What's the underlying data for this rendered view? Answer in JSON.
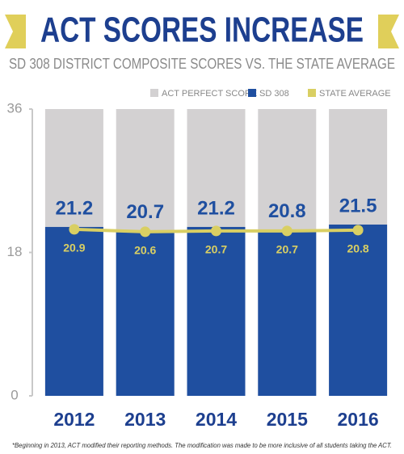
{
  "chart_data": {
    "type": "bar",
    "title": "ACT SCORES INCREASE",
    "subtitle": "SD 308 DISTRICT COMPOSITE SCORES VS. THE STATE AVERAGE",
    "categories": [
      "2012",
      "2013",
      "2014",
      "2015",
      "2016"
    ],
    "series": [
      {
        "name": "ACT PERFECT SCORE",
        "color": "#d3d1d2",
        "type": "bar",
        "values": [
          36,
          36,
          36,
          36,
          36
        ]
      },
      {
        "name": "SD 308",
        "color": "#1f4fa0",
        "type": "bar",
        "values": [
          21.2,
          20.7,
          21.2,
          20.8,
          21.5
        ]
      },
      {
        "name": "STATE AVERAGE",
        "color": "#d9cf63",
        "type": "line",
        "values": [
          20.9,
          20.6,
          20.7,
          20.7,
          20.8
        ]
      }
    ],
    "ylim": [
      0,
      36
    ],
    "yticks": [
      0,
      18,
      36
    ],
    "legend": "top-right",
    "footnote": "*Beginning in 2013, ACT modified their reporting methods. The modification was made to be more inclusive of all students taking the ACT."
  }
}
